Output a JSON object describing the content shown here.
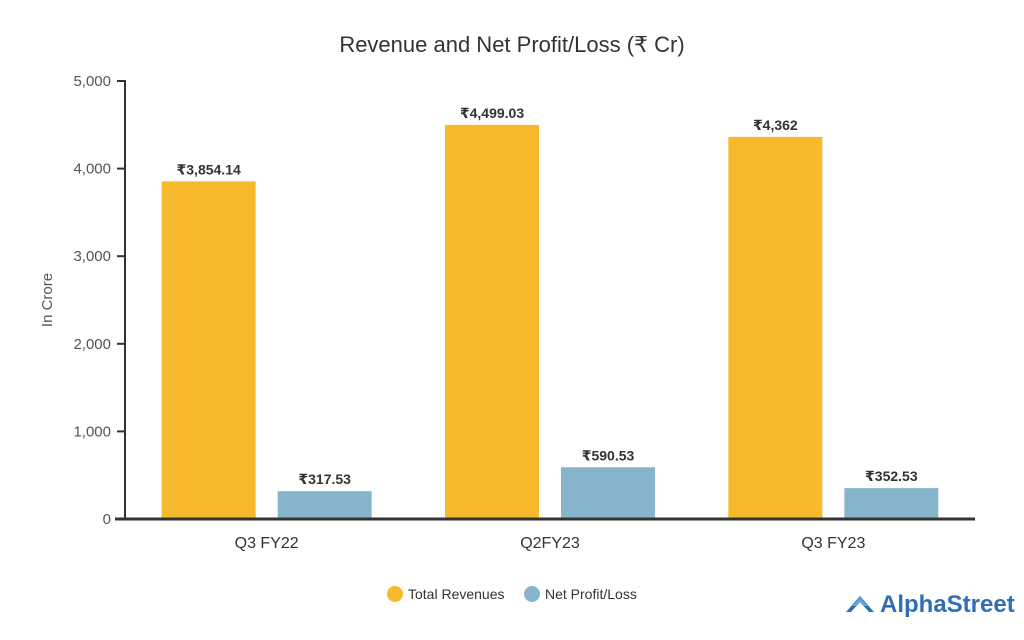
{
  "chart_data": {
    "type": "bar",
    "title": "Revenue and Net Profit/Loss (₹ Cr)",
    "xlabel": "",
    "ylabel": "In Crore",
    "ylim": [
      0,
      5000
    ],
    "yticks": [
      0,
      1000,
      2000,
      3000,
      4000,
      5000
    ],
    "ytick_labels": [
      "0",
      "1,000",
      "2,000",
      "3,000",
      "4,000",
      "5,000"
    ],
    "categories": [
      "Q3 FY22",
      "Q2FY23",
      "Q3 FY23"
    ],
    "series": [
      {
        "name": "Total Revenues",
        "color": "#f6b92b",
        "values": [
          3854.14,
          4499.03,
          4362
        ],
        "labels": [
          "₹3,854.14",
          "₹4,499.03",
          "₹4,362"
        ]
      },
      {
        "name": "Net Profit/Loss",
        "color": "#86b5cb",
        "values": [
          317.53,
          590.53,
          352.53
        ],
        "labels": [
          "₹317.53",
          "₹590.53",
          "₹352.53"
        ]
      }
    ],
    "legend_position": "bottom-center",
    "grid": false
  },
  "branding": {
    "name": "AlphaStreet",
    "color": "#2f6fb5"
  }
}
